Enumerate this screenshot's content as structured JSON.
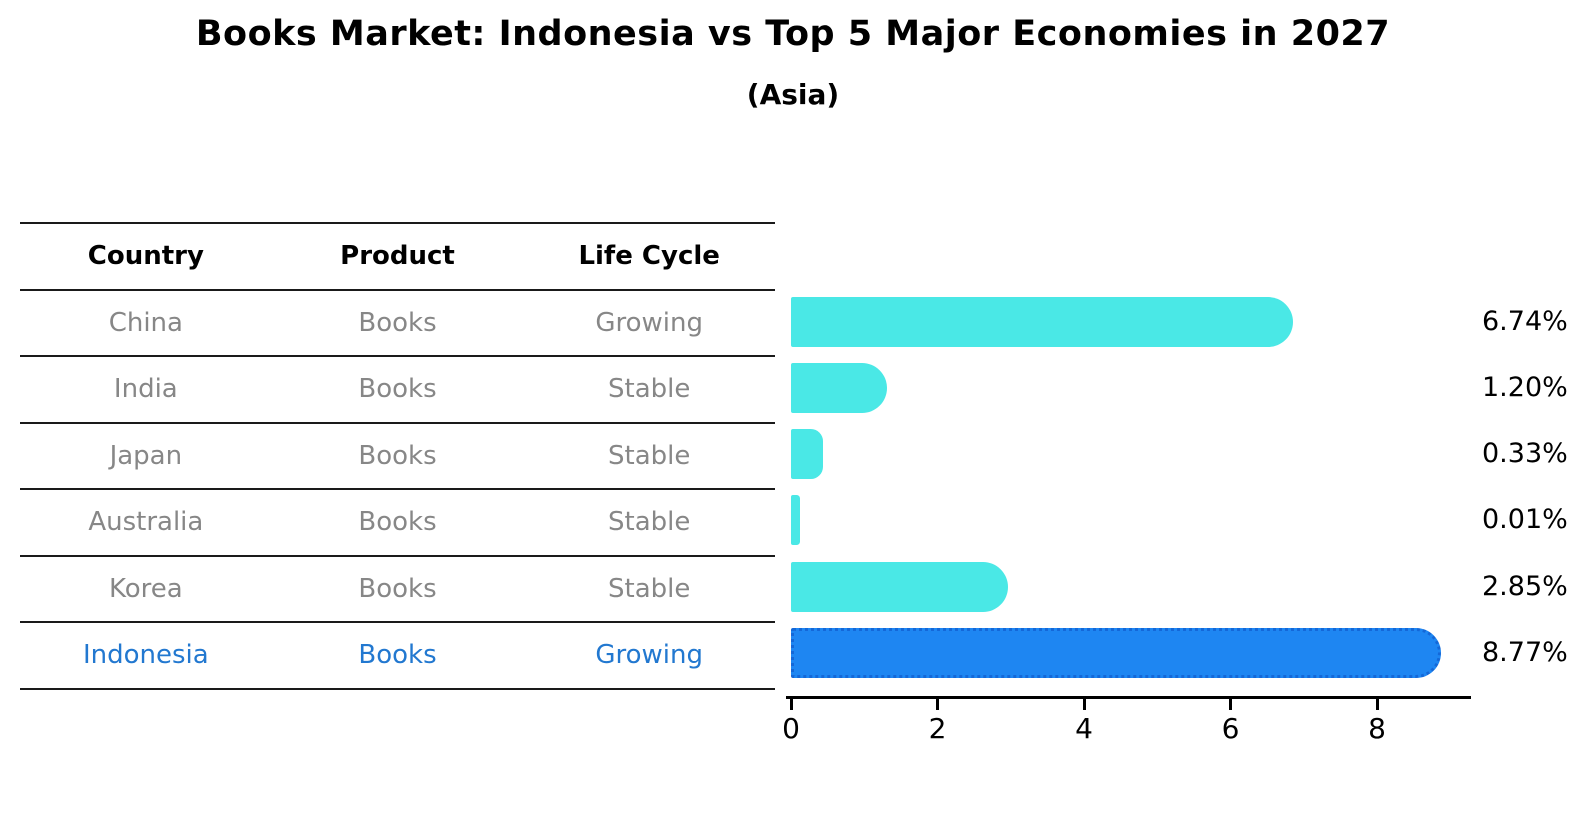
{
  "title": "Books Market: Indonesia vs Top 5 Major Economies in 2027",
  "subtitle": "(Asia)",
  "table": {
    "columns": [
      "Country",
      "Product",
      "Life Cycle"
    ],
    "rows": [
      {
        "country": "China",
        "product": "Books",
        "life_cycle": "Growing",
        "highlighted": false
      },
      {
        "country": "India",
        "product": "Books",
        "life_cycle": "Stable",
        "highlighted": false
      },
      {
        "country": "Japan",
        "product": "Books",
        "life_cycle": "Stable",
        "highlighted": false
      },
      {
        "country": "Australia",
        "product": "Books",
        "life_cycle": "Stable",
        "highlighted": false
      },
      {
        "country": "Korea",
        "product": "Books",
        "life_cycle": "Stable",
        "highlighted": false
      },
      {
        "country": "Indonesia",
        "product": "Books",
        "life_cycle": "Growing",
        "highlighted": true
      }
    ]
  },
  "chart_data": {
    "type": "bar",
    "orientation": "horizontal",
    "title": "Books Market: Indonesia vs Top 5 Major Economies in 2027",
    "subtitle": "(Asia)",
    "categories": [
      "China",
      "India",
      "Japan",
      "Australia",
      "Korea",
      "Indonesia"
    ],
    "values": [
      6.74,
      1.2,
      0.33,
      0.01,
      2.85,
      8.77
    ],
    "value_labels": [
      "6.74%",
      "1.20%",
      "0.33%",
      "0.01%",
      "2.85%",
      "8.77%"
    ],
    "x_ticks": [
      0,
      2,
      4,
      6,
      8
    ],
    "x_tick_labels": [
      "0",
      "2",
      "4",
      "6",
      "8"
    ],
    "xlim": [
      0,
      9.3
    ],
    "grid": false,
    "legend": "none",
    "highlighted_category": "Indonesia",
    "colors": {
      "bar": "#4ae8e6",
      "highlight_bar_fill": "#1e86f2",
      "highlight_bar_border": "#1468d8",
      "row_text": "#878787",
      "highlight_text": "#2278d0",
      "header_text": "#000000",
      "value_text": "#000000",
      "axis": "#000000"
    }
  }
}
